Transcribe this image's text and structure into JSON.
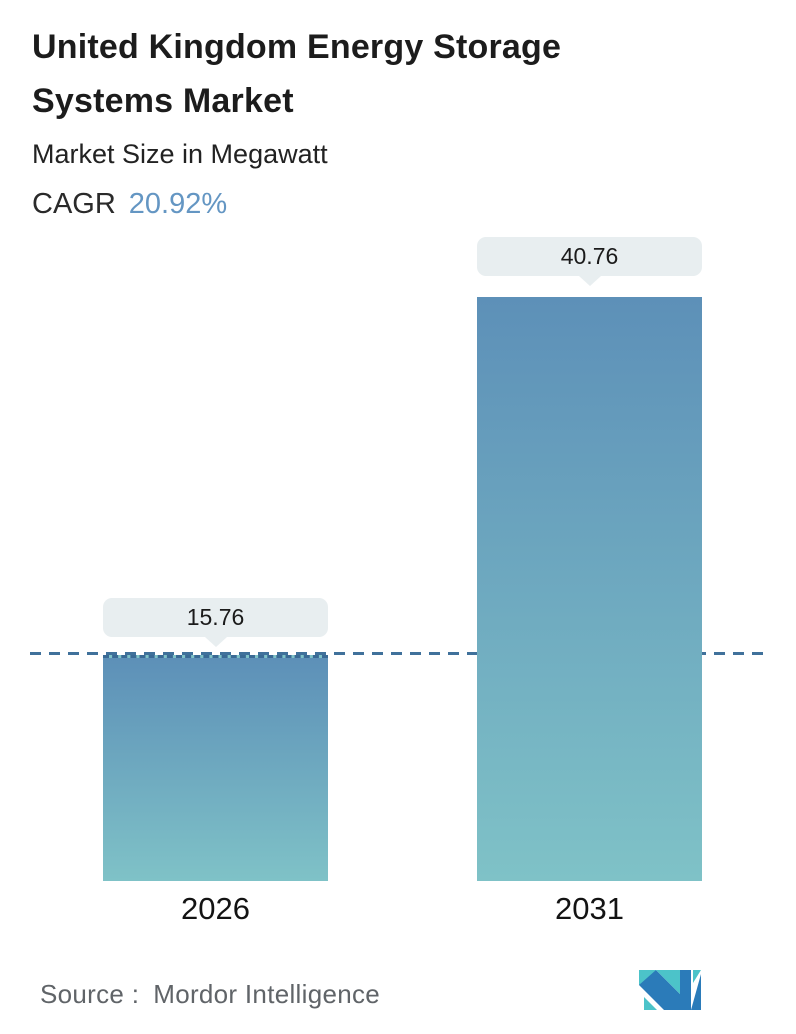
{
  "header": {
    "title": "United Kingdom Energy Storage Systems Market",
    "subtitle": "Market Size in Megawatt",
    "cagr_label": "CAGR",
    "cagr_value": "20.92%"
  },
  "chart_data": {
    "type": "bar",
    "categories": [
      "2026",
      "2031"
    ],
    "values": [
      15.76,
      40.76
    ],
    "value_labels": [
      "15.76",
      "40.76"
    ],
    "title": "United Kingdom Energy Storage Systems Market",
    "xlabel": "",
    "ylabel": "Market Size in Megawatt",
    "ylim": [
      0,
      45.4
    ],
    "grid": false,
    "legend": "none",
    "cagr_percent": 20.92,
    "annotations": {
      "dashed_line_at_y": 15.76
    },
    "colors": {
      "bar_gradient_top": "#5d90b8",
      "bar_gradient_bottom": "#7fc2c7",
      "dashed_line": "#40719b",
      "tooltip_bg": "#e8eef0",
      "tooltip_text": "#1b1b1b",
      "cagr_value_text": "#6496c3"
    }
  },
  "footer": {
    "source_label": "Source :",
    "source_name": "Mordor Intelligence",
    "logo": "mordor-intelligence-logo",
    "logo_colors": {
      "teal": "#4cc3c9",
      "blue": "#2b7bb9"
    }
  }
}
